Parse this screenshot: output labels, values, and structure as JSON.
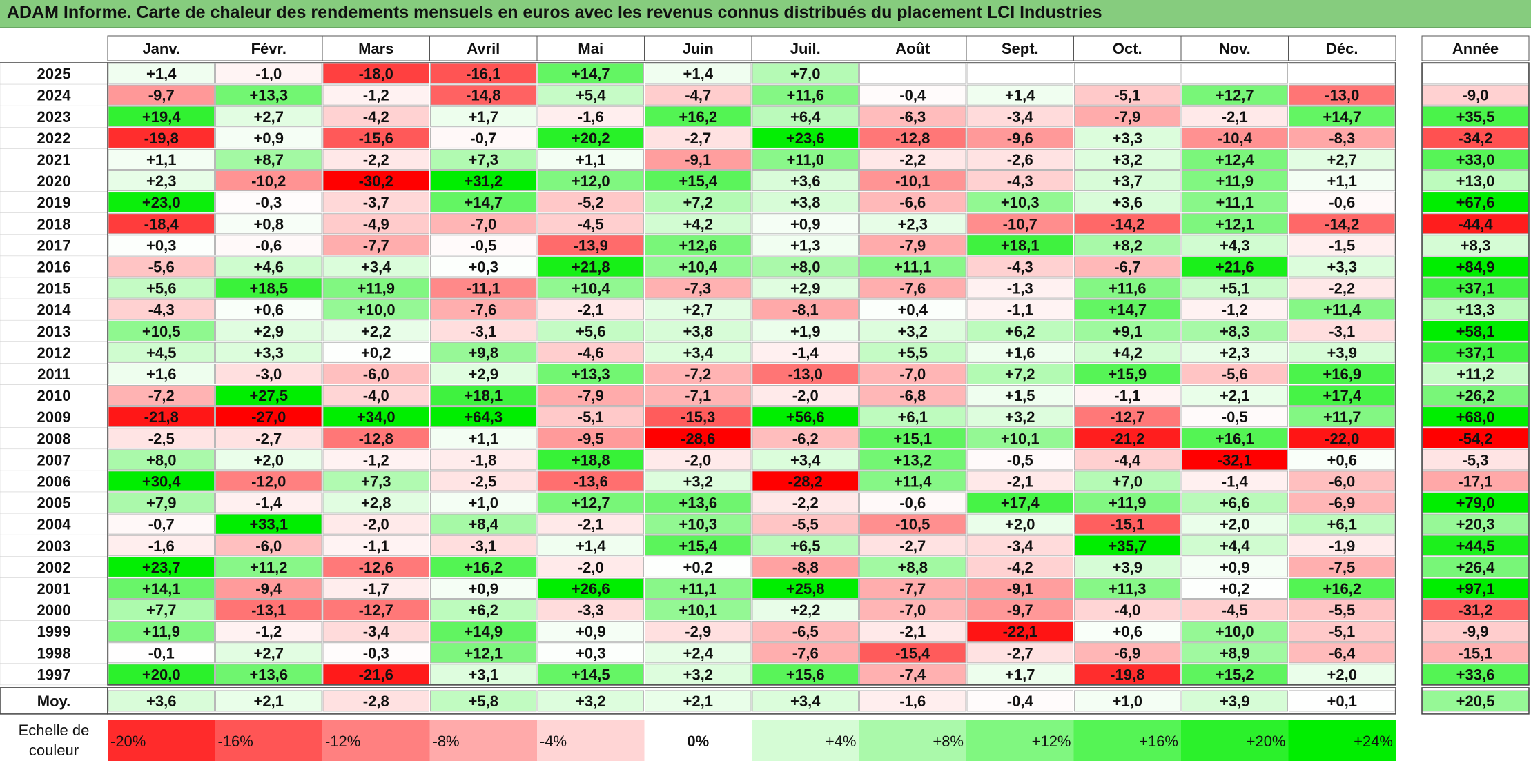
{
  "title": "ADAM Informe. Carte de chaleur des rendements mensuels en euros avec les revenus connus distribués du placement LCI Industries",
  "chart_data": {
    "type": "heatmap",
    "columns": [
      "Janv.",
      "Févr.",
      "Mars",
      "Avril",
      "Mai",
      "Juin",
      "Juil.",
      "Août",
      "Sept.",
      "Oct.",
      "Nov.",
      "Déc."
    ],
    "year_column_label": "Année",
    "rows": [
      {
        "label": "2025",
        "values": [
          "+1,4",
          "-1,0",
          "-18,0",
          "-16,1",
          "+14,7",
          "+1,4",
          "+7,0",
          "",
          "",
          "",
          "",
          ""
        ],
        "year": ""
      },
      {
        "label": "2024",
        "values": [
          "-9,7",
          "+13,3",
          "-1,2",
          "-14,8",
          "+5,4",
          "-4,7",
          "+11,6",
          "-0,4",
          "+1,4",
          "-5,1",
          "+12,7",
          "-13,0"
        ],
        "year": "-9,0"
      },
      {
        "label": "2023",
        "values": [
          "+19,4",
          "+2,7",
          "-4,2",
          "+1,7",
          "-1,6",
          "+16,2",
          "+6,4",
          "-6,3",
          "-3,4",
          "-7,9",
          "-2,1",
          "+14,7"
        ],
        "year": "+35,5"
      },
      {
        "label": "2022",
        "values": [
          "-19,8",
          "+0,9",
          "-15,6",
          "-0,7",
          "+20,2",
          "-2,7",
          "+23,6",
          "-12,8",
          "-9,6",
          "+3,3",
          "-10,4",
          "-8,3"
        ],
        "year": "-34,2"
      },
      {
        "label": "2021",
        "values": [
          "+1,1",
          "+8,7",
          "-2,2",
          "+7,3",
          "+1,1",
          "-9,1",
          "+11,0",
          "-2,2",
          "-2,6",
          "+3,2",
          "+12,4",
          "+2,7"
        ],
        "year": "+33,0"
      },
      {
        "label": "2020",
        "values": [
          "+2,3",
          "-10,2",
          "-30,2",
          "+31,2",
          "+12,0",
          "+15,4",
          "+3,6",
          "-10,1",
          "-4,3",
          "+3,7",
          "+11,9",
          "+1,1"
        ],
        "year": "+13,0"
      },
      {
        "label": "2019",
        "values": [
          "+23,0",
          "-0,3",
          "-3,7",
          "+14,7",
          "-5,2",
          "+7,2",
          "+3,8",
          "-6,6",
          "+10,3",
          "+3,6",
          "+11,1",
          "-0,6"
        ],
        "year": "+67,6"
      },
      {
        "label": "2018",
        "values": [
          "-18,4",
          "+0,8",
          "-4,9",
          "-7,0",
          "-4,5",
          "+4,2",
          "+0,9",
          "+2,3",
          "-10,7",
          "-14,2",
          "+12,1",
          "-14,2"
        ],
        "year": "-44,4"
      },
      {
        "label": "2017",
        "values": [
          "+0,3",
          "-0,6",
          "-7,7",
          "-0,5",
          "-13,9",
          "+12,6",
          "+1,3",
          "-7,9",
          "+18,1",
          "+8,2",
          "+4,3",
          "-1,5"
        ],
        "year": "+8,3"
      },
      {
        "label": "2016",
        "values": [
          "-5,6",
          "+4,6",
          "+3,4",
          "+0,3",
          "+21,8",
          "+10,4",
          "+8,0",
          "+11,1",
          "-4,3",
          "-6,7",
          "+21,6",
          "+3,3"
        ],
        "year": "+84,9"
      },
      {
        "label": "2015",
        "values": [
          "+5,6",
          "+18,5",
          "+11,9",
          "-11,1",
          "+10,4",
          "-7,3",
          "+2,9",
          "-7,6",
          "-1,3",
          "+11,6",
          "+5,1",
          "-2,2"
        ],
        "year": "+37,1"
      },
      {
        "label": "2014",
        "values": [
          "-4,3",
          "+0,6",
          "+10,0",
          "-7,6",
          "-2,1",
          "+2,7",
          "-8,1",
          "+0,4",
          "-1,1",
          "+14,7",
          "-1,2",
          "+11,4"
        ],
        "year": "+13,3"
      },
      {
        "label": "2013",
        "values": [
          "+10,5",
          "+2,9",
          "+2,2",
          "-3,1",
          "+5,6",
          "+3,8",
          "+1,9",
          "+3,2",
          "+6,2",
          "+9,1",
          "+8,3",
          "-3,1"
        ],
        "year": "+58,1"
      },
      {
        "label": "2012",
        "values": [
          "+4,5",
          "+3,3",
          "+0,2",
          "+9,8",
          "-4,6",
          "+3,4",
          "-1,4",
          "+5,5",
          "+1,6",
          "+4,2",
          "+2,3",
          "+3,9"
        ],
        "year": "+37,1"
      },
      {
        "label": "2011",
        "values": [
          "+1,6",
          "-3,0",
          "-6,0",
          "+2,9",
          "+13,3",
          "-7,2",
          "-13,0",
          "-7,0",
          "+7,2",
          "+15,9",
          "-5,6",
          "+16,9"
        ],
        "year": "+11,2"
      },
      {
        "label": "2010",
        "values": [
          "-7,2",
          "+27,5",
          "-4,0",
          "+18,1",
          "-7,9",
          "-7,1",
          "-2,0",
          "-6,8",
          "+1,5",
          "-1,1",
          "+2,1",
          "+17,4"
        ],
        "year": "+26,2"
      },
      {
        "label": "2009",
        "values": [
          "-21,8",
          "-27,0",
          "+34,0",
          "+64,3",
          "-5,1",
          "-15,3",
          "+56,6",
          "+6,1",
          "+3,2",
          "-12,7",
          "-0,5",
          "+11,7"
        ],
        "year": "+68,0"
      },
      {
        "label": "2008",
        "values": [
          "-2,5",
          "-2,7",
          "-12,8",
          "+1,1",
          "-9,5",
          "-28,6",
          "-6,2",
          "+15,1",
          "+10,1",
          "-21,2",
          "+16,1",
          "-22,0"
        ],
        "year": "-54,2"
      },
      {
        "label": "2007",
        "values": [
          "+8,0",
          "+2,0",
          "-1,2",
          "-1,8",
          "+18,8",
          "-2,0",
          "+3,4",
          "+13,2",
          "-0,5",
          "-4,4",
          "-32,1",
          "+0,6"
        ],
        "year": "-5,3"
      },
      {
        "label": "2006",
        "values": [
          "+30,4",
          "-12,0",
          "+7,3",
          "-2,5",
          "-13,6",
          "+3,2",
          "-28,2",
          "+11,4",
          "-2,1",
          "+7,0",
          "-1,4",
          "-6,0"
        ],
        "year": "-17,1"
      },
      {
        "label": "2005",
        "values": [
          "+7,9",
          "-1,4",
          "+2,8",
          "+1,0",
          "+12,7",
          "+13,6",
          "-2,2",
          "-0,6",
          "+17,4",
          "+11,9",
          "+6,6",
          "-6,9"
        ],
        "year": "+79,0"
      },
      {
        "label": "2004",
        "values": [
          "-0,7",
          "+33,1",
          "-2,0",
          "+8,4",
          "-2,1",
          "+10,3",
          "-5,5",
          "-10,5",
          "+2,0",
          "-15,1",
          "+2,0",
          "+6,1"
        ],
        "year": "+20,3"
      },
      {
        "label": "2003",
        "values": [
          "-1,6",
          "-6,0",
          "-1,1",
          "-3,1",
          "+1,4",
          "+15,4",
          "+6,5",
          "-2,7",
          "-3,4",
          "+35,7",
          "+4,4",
          "-1,9"
        ],
        "year": "+44,5"
      },
      {
        "label": "2002",
        "values": [
          "+23,7",
          "+11,2",
          "-12,6",
          "+16,2",
          "-2,0",
          "+0,2",
          "-8,8",
          "+8,8",
          "-4,2",
          "+3,9",
          "+0,9",
          "-7,5"
        ],
        "year": "+26,4"
      },
      {
        "label": "2001",
        "values": [
          "+14,1",
          "-9,4",
          "-1,7",
          "+0,9",
          "+26,6",
          "+11,1",
          "+25,8",
          "-7,7",
          "-9,1",
          "+11,3",
          "+0,2",
          "+16,2"
        ],
        "year": "+97,1"
      },
      {
        "label": "2000",
        "values": [
          "+7,7",
          "-13,1",
          "-12,7",
          "+6,2",
          "-3,3",
          "+10,1",
          "+2,2",
          "-7,0",
          "-9,7",
          "-4,0",
          "-4,5",
          "-5,5"
        ],
        "year": "-31,2"
      },
      {
        "label": "1999",
        "values": [
          "+11,9",
          "-1,2",
          "-3,4",
          "+14,9",
          "+0,9",
          "-2,9",
          "-6,5",
          "-2,1",
          "-22,1",
          "+0,6",
          "+10,0",
          "-5,1"
        ],
        "year": "-9,9"
      },
      {
        "label": "1998",
        "values": [
          "-0,1",
          "+2,7",
          "-0,3",
          "+12,1",
          "+0,3",
          "+2,4",
          "-7,6",
          "-15,4",
          "-2,7",
          "-6,9",
          "+8,9",
          "-6,4"
        ],
        "year": "-15,1"
      },
      {
        "label": "1997",
        "values": [
          "+20,0",
          "+13,6",
          "-21,6",
          "+3,1",
          "+14,5",
          "+3,2",
          "+15,6",
          "-7,4",
          "+1,7",
          "-19,8",
          "+15,2",
          "+2,0"
        ],
        "year": "+33,6"
      }
    ],
    "average": {
      "label": "Moy.",
      "values": [
        "+3,6",
        "+2,1",
        "-2,8",
        "+5,8",
        "+3,2",
        "+2,1",
        "+3,4",
        "-1,6",
        "-0,4",
        "+1,0",
        "+3,9",
        "+0,1"
      ],
      "year": "+20,5"
    },
    "scale": {
      "label": "Echelle de couleur",
      "items": [
        "-20%",
        "-16%",
        "-12%",
        "-8%",
        "-4%",
        "0%",
        "+4%",
        "+8%",
        "+12%",
        "+16%",
        "+20%",
        "+24%"
      ],
      "values": [
        -20,
        -16,
        -12,
        -8,
        -4,
        0,
        4,
        8,
        12,
        16,
        20,
        24
      ]
    },
    "colors": {
      "neg_max": "#ff0000",
      "zero": "#ffffff",
      "pos_max": "#00ee00",
      "title_bg": "#86cc7e"
    }
  }
}
